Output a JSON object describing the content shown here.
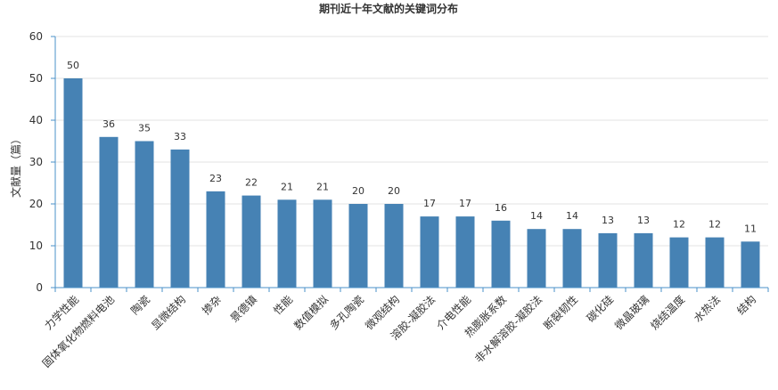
{
  "chart_data": {
    "type": "bar",
    "title": "期刊近十年文献的关键词分布",
    "xlabel": "",
    "ylabel": "文献量（篇）",
    "ylim": [
      0,
      60
    ],
    "yticks": [
      0,
      10,
      20,
      30,
      40,
      50,
      60
    ],
    "grid": true,
    "bar_color": "#4682b4",
    "axis_color": "#4a90c8",
    "categories": [
      "力学性能",
      "固体氧化物燃料电池",
      "陶瓷",
      "显微结构",
      "掺杂",
      "景德镇",
      "性能",
      "数值模拟",
      "多孔陶瓷",
      "微观结构",
      "溶胶-凝胶法",
      "介电性能",
      "热膨胀系数",
      "非水解溶胶-凝胶法",
      "断裂韧性",
      "碳化硅",
      "微晶玻璃",
      "烧结温度",
      "水热法",
      "结构"
    ],
    "values": [
      50,
      36,
      35,
      33,
      23,
      22,
      21,
      21,
      20,
      20,
      17,
      17,
      16,
      14,
      14,
      13,
      13,
      12,
      12,
      11
    ]
  }
}
